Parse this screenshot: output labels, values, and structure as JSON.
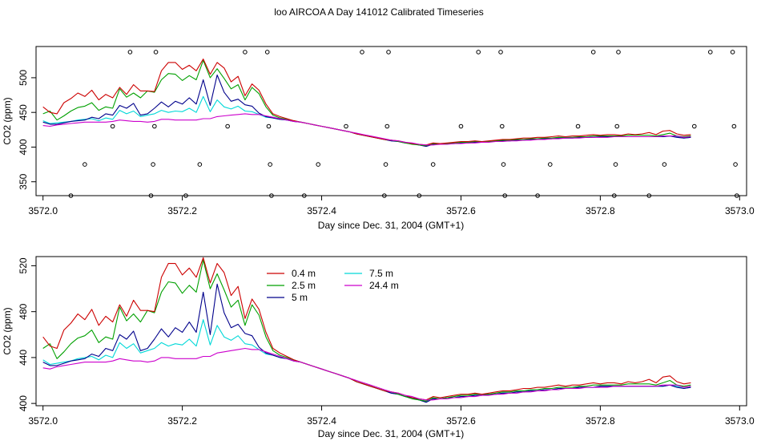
{
  "chart_data": [
    {
      "type": "line",
      "title": "loo AIRCOA A  Day 141012  Calibrated Timeseries",
      "xlabel": "Day since Dec. 31, 2004 (GMT+1)",
      "ylabel": "CO2 (ppm)",
      "xlim": [
        3571.99,
        3573.01
      ],
      "ylim": [
        330,
        545
      ],
      "xticks": [
        3572.0,
        3572.2,
        3572.4,
        3572.6,
        3572.8,
        3573.0
      ],
      "xtick_labels": [
        "3572.0",
        "3572.2",
        "3572.4",
        "3572.6",
        "3572.8",
        "3573.0"
      ],
      "yticks": [
        350,
        400,
        450,
        500
      ],
      "ytick_labels": [
        "350",
        "400",
        "450",
        "500"
      ],
      "grid": false,
      "legend": "none",
      "calibration_markers": [
        {
          "x": 3572.04,
          "y": 330
        },
        {
          "x": 3572.06,
          "y": 375
        },
        {
          "x": 3572.1,
          "y": 430
        },
        {
          "x": 3572.125,
          "y": 537
        },
        {
          "x": 3572.155,
          "y": 330
        },
        {
          "x": 3572.158,
          "y": 375
        },
        {
          "x": 3572.16,
          "y": 430
        },
        {
          "x": 3572.162,
          "y": 537
        },
        {
          "x": 3572.205,
          "y": 330
        },
        {
          "x": 3572.225,
          "y": 375
        },
        {
          "x": 3572.265,
          "y": 430
        },
        {
          "x": 3572.29,
          "y": 537
        },
        {
          "x": 3572.322,
          "y": 537
        },
        {
          "x": 3572.324,
          "y": 430
        },
        {
          "x": 3572.326,
          "y": 375
        },
        {
          "x": 3572.328,
          "y": 330
        },
        {
          "x": 3572.375,
          "y": 330
        },
        {
          "x": 3572.395,
          "y": 375
        },
        {
          "x": 3572.435,
          "y": 430
        },
        {
          "x": 3572.458,
          "y": 537
        },
        {
          "x": 3572.49,
          "y": 330
        },
        {
          "x": 3572.492,
          "y": 375
        },
        {
          "x": 3572.494,
          "y": 430
        },
        {
          "x": 3572.496,
          "y": 537
        },
        {
          "x": 3572.54,
          "y": 330
        },
        {
          "x": 3572.56,
          "y": 375
        },
        {
          "x": 3572.6,
          "y": 430
        },
        {
          "x": 3572.625,
          "y": 537
        },
        {
          "x": 3572.657,
          "y": 537
        },
        {
          "x": 3572.659,
          "y": 430
        },
        {
          "x": 3572.661,
          "y": 375
        },
        {
          "x": 3572.663,
          "y": 330
        },
        {
          "x": 3572.71,
          "y": 330
        },
        {
          "x": 3572.728,
          "y": 375
        },
        {
          "x": 3572.768,
          "y": 430
        },
        {
          "x": 3572.79,
          "y": 537
        },
        {
          "x": 3572.82,
          "y": 330
        },
        {
          "x": 3572.822,
          "y": 375
        },
        {
          "x": 3572.824,
          "y": 430
        },
        {
          "x": 3572.826,
          "y": 537
        },
        {
          "x": 3572.87,
          "y": 330
        },
        {
          "x": 3572.892,
          "y": 375
        },
        {
          "x": 3572.935,
          "y": 430
        },
        {
          "x": 3572.958,
          "y": 537
        },
        {
          "x": 3572.99,
          "y": 537
        },
        {
          "x": 3572.992,
          "y": 430
        },
        {
          "x": 3572.994,
          "y": 375
        },
        {
          "x": 3572.996,
          "y": 330
        }
      ]
    },
    {
      "type": "line",
      "title": "",
      "xlabel": "Day since Dec. 31, 2004 (GMT+1)",
      "ylabel": "CO2 (ppm)",
      "xlim": [
        3571.99,
        3573.01
      ],
      "ylim": [
        398,
        528
      ],
      "xticks": [
        3572.0,
        3572.2,
        3572.4,
        3572.6,
        3572.8,
        3573.0
      ],
      "xtick_labels": [
        "3572.0",
        "3572.2",
        "3572.4",
        "3572.6",
        "3572.8",
        "3573.0"
      ],
      "yticks": [
        400,
        440,
        480,
        520
      ],
      "ytick_labels": [
        "400",
        "440",
        "480",
        "520"
      ],
      "grid": false,
      "legend": "top-left",
      "legend_entries": [
        "0.4 m",
        "2.5 m",
        "5 m",
        "7.5 m",
        "24.4 m"
      ]
    }
  ],
  "series_shared": {
    "x_start": 3572.0,
    "x_step": 0.01,
    "series": [
      {
        "name": "0.4 m",
        "color": "#cc0000",
        "values": [
          458,
          450,
          448,
          464,
          470,
          478,
          473,
          482,
          468,
          476,
          471,
          486,
          476,
          490,
          481,
          481,
          480,
          510,
          522,
          522,
          512,
          518,
          510,
          527,
          505,
          522,
          514,
          494,
          502,
          474,
          491,
          482,
          462,
          448,
          444,
          441,
          438,
          436,
          434,
          432,
          430,
          428,
          426,
          424,
          422,
          419,
          417,
          415,
          413,
          411,
          410,
          409,
          407,
          405,
          404,
          403,
          406,
          405,
          406,
          407,
          408,
          408,
          409,
          408,
          409,
          410,
          411,
          411,
          412,
          413,
          413,
          414,
          414,
          415,
          416,
          415,
          416,
          416,
          417,
          418,
          417,
          418,
          418,
          417,
          419,
          418,
          419,
          421,
          418,
          423,
          424,
          419,
          417,
          418
        ]
      },
      {
        "name": "2.5 m",
        "color": "#00a000",
        "values": [
          448,
          452,
          439,
          445,
          452,
          457,
          459,
          464,
          453,
          458,
          456,
          484,
          472,
          478,
          471,
          481,
          479,
          497,
          506,
          505,
          496,
          503,
          497,
          525,
          500,
          513,
          499,
          484,
          490,
          468,
          486,
          477,
          458,
          446,
          442,
          440,
          438,
          436,
          434,
          432,
          430,
          428,
          426,
          424,
          422,
          419,
          417,
          415,
          413,
          411,
          410,
          408,
          406,
          404,
          403,
          402,
          405,
          404,
          405,
          406,
          407,
          407,
          408,
          408,
          408,
          409,
          410,
          410,
          411,
          411,
          412,
          412,
          413,
          413,
          414,
          414,
          414,
          415,
          415,
          416,
          416,
          416,
          416,
          416,
          417,
          417,
          417,
          417,
          416,
          418,
          420,
          416,
          415,
          416
        ]
      },
      {
        "name": "5 m",
        "color": "#00008b",
        "values": [
          436,
          433,
          433,
          435,
          437,
          438,
          439,
          443,
          441,
          448,
          446,
          460,
          456,
          463,
          446,
          448,
          456,
          465,
          458,
          466,
          462,
          471,
          462,
          497,
          460,
          504,
          479,
          466,
          469,
          461,
          459,
          449,
          444,
          442,
          440,
          439,
          437,
          436,
          434,
          432,
          430,
          428,
          426,
          424,
          422,
          419,
          417,
          415,
          413,
          411,
          409,
          408,
          406,
          405,
          403,
          401,
          404,
          404,
          405,
          405,
          406,
          406,
          407,
          407,
          408,
          408,
          409,
          409,
          410,
          410,
          411,
          411,
          412,
          412,
          413,
          413,
          413,
          414,
          414,
          414,
          415,
          415,
          415,
          415,
          415,
          415,
          415,
          415,
          415,
          415,
          416,
          414,
          413,
          414
        ]
      },
      {
        "name": "7.5 m",
        "color": "#00d8d8",
        "values": [
          438,
          434,
          435,
          436,
          437,
          439,
          440,
          441,
          438,
          442,
          440,
          453,
          448,
          452,
          444,
          446,
          448,
          453,
          450,
          452,
          451,
          456,
          450,
          473,
          451,
          468,
          458,
          455,
          459,
          452,
          451,
          447,
          443,
          442,
          440,
          439,
          437,
          436,
          434,
          432,
          430,
          428,
          426,
          424,
          422,
          419,
          417,
          415,
          413,
          411,
          409,
          408,
          406,
          405,
          403,
          402,
          404,
          404,
          405,
          405,
          406,
          406,
          407,
          407,
          408,
          408,
          409,
          409,
          410,
          410,
          411,
          411,
          412,
          412,
          413,
          413,
          413,
          414,
          414,
          414,
          415,
          415,
          415,
          415,
          415,
          415,
          415,
          415,
          415,
          415,
          416,
          415,
          413,
          414
        ]
      },
      {
        "name": "24.4 m",
        "color": "#cc00cc",
        "values": [
          431,
          430,
          432,
          433,
          434,
          435,
          436,
          436,
          436,
          436,
          437,
          439,
          438,
          437,
          437,
          436,
          437,
          440,
          440,
          439,
          439,
          439,
          439,
          441,
          441,
          444,
          445,
          446,
          447,
          448,
          447,
          447,
          445,
          443,
          441,
          439,
          437,
          436,
          434,
          432,
          430,
          428,
          426,
          424,
          422,
          420,
          418,
          416,
          414,
          412,
          410,
          409,
          407,
          406,
          404,
          403,
          403,
          404,
          404,
          405,
          405,
          406,
          406,
          407,
          407,
          408,
          408,
          409,
          409,
          410,
          410,
          411,
          411,
          412,
          412,
          413,
          413,
          413,
          414,
          414,
          414,
          414,
          415,
          415,
          415,
          415,
          415,
          415,
          415,
          416,
          416,
          416,
          414,
          415
        ]
      }
    ]
  }
}
